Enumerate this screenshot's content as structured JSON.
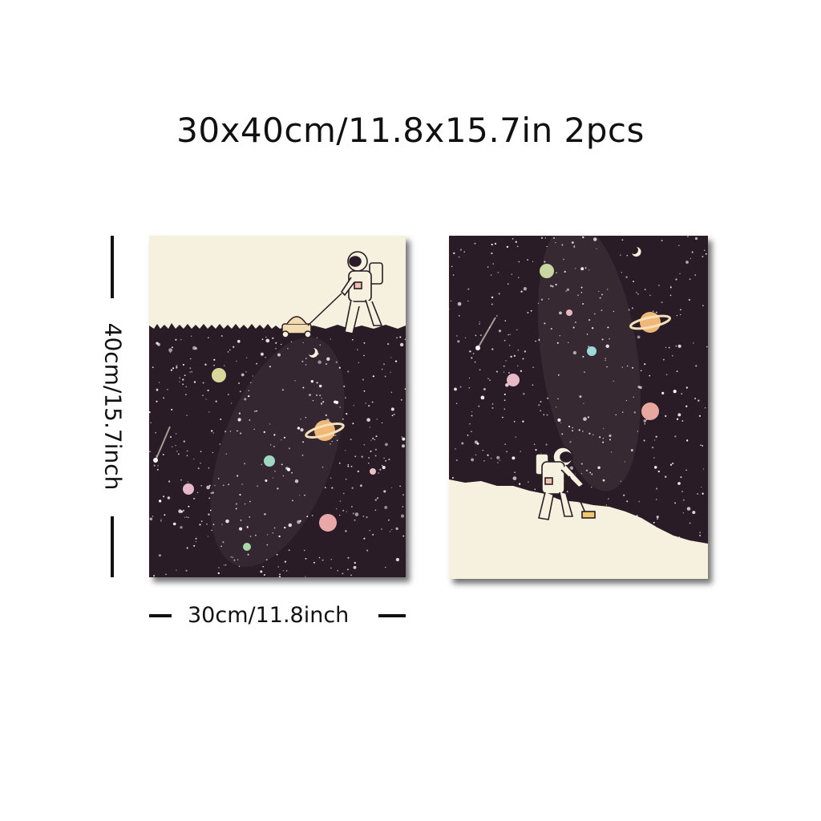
{
  "product": {
    "title": "30x40cm/11.8x15.7in 2pcs"
  },
  "dimensions": {
    "height_label": "40cm/15.7inch",
    "width_label": "30cm/11.8inch"
  },
  "colors": {
    "space": "#2a1c26",
    "cream": "#f6f1df",
    "ink": "#111111"
  },
  "prints": [
    {
      "name": "astronaut-mowing-lawn-print"
    },
    {
      "name": "astronaut-sweeping-print"
    }
  ]
}
